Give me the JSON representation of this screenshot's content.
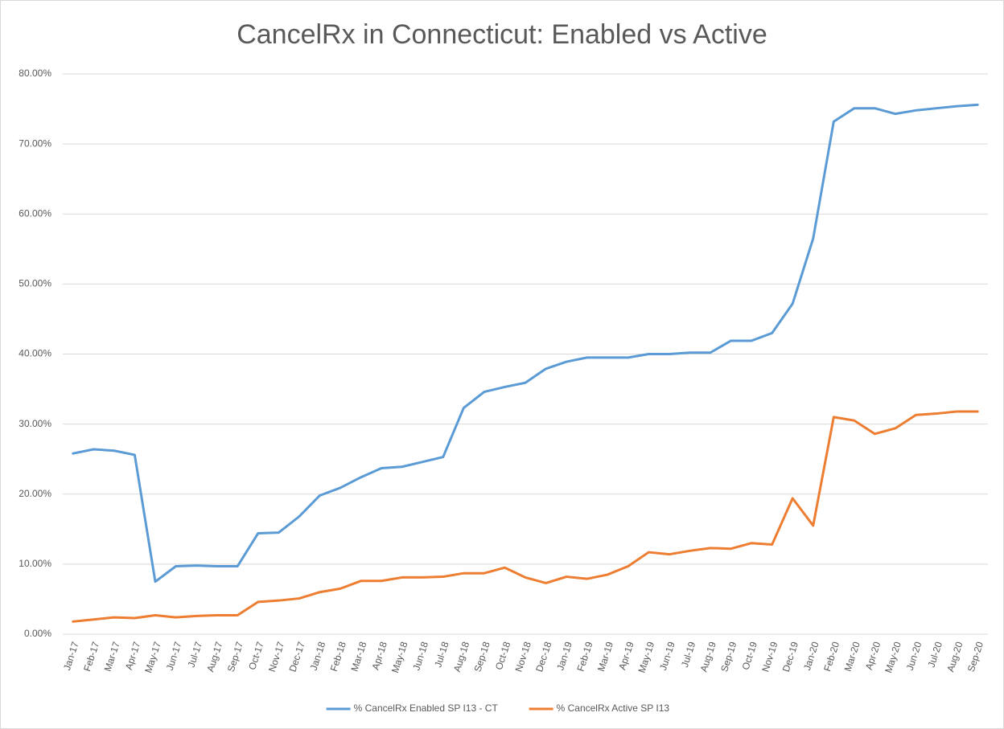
{
  "chart_data": {
    "type": "line",
    "title": "CancelRx in Connecticut: Enabled vs Active",
    "categories": [
      "Jan-17",
      "Feb-17",
      "Mar-17",
      "Apr-17",
      "May-17",
      "Jun-17",
      "Jul-17",
      "Aug-17",
      "Sep-17",
      "Oct-17",
      "Nov-17",
      "Dec-17",
      "Jan-18",
      "Feb-18",
      "Mar-18",
      "Apr-18",
      "May-18",
      "Jun-18",
      "Jul-18",
      "Aug-18",
      "Sep-18",
      "Oct-18",
      "Nov-18",
      "Dec-18",
      "Jan-19",
      "Feb-19",
      "Mar-19",
      "Apr-19",
      "May-19",
      "Jun-19",
      "Jul-19",
      "Aug-19",
      "Sep-19",
      "Oct-19",
      "Nov-19",
      "Dec-19",
      "Jan-20",
      "Feb-20",
      "Mar-20",
      "Apr-20",
      "May-20",
      "Jun-20",
      "Jul-20",
      "Aug-20",
      "Sep-20"
    ],
    "series": [
      {
        "name": "% CancelRx Enabled SP I13 - CT",
        "color": "#5b9bd5",
        "values": [
          25.8,
          26.4,
          26.2,
          25.6,
          7.5,
          9.7,
          9.8,
          9.7,
          9.7,
          14.4,
          14.5,
          16.8,
          19.8,
          20.9,
          22.4,
          23.7,
          23.9,
          24.6,
          25.3,
          32.3,
          34.6,
          35.3,
          35.9,
          37.9,
          38.9,
          39.5,
          39.5,
          39.5,
          40.0,
          40.0,
          40.2,
          40.2,
          41.9,
          41.9,
          43.0,
          47.2,
          56.5,
          73.2,
          75.1,
          75.1,
          74.3,
          74.8,
          75.1,
          75.4,
          75.6
        ]
      },
      {
        "name": "% CancelRx Active SP I13",
        "color": "#ed7d31",
        "values": [
          1.8,
          2.1,
          2.4,
          2.3,
          2.7,
          2.4,
          2.6,
          2.7,
          2.7,
          4.6,
          4.8,
          5.1,
          6.0,
          6.5,
          7.6,
          7.6,
          8.1,
          8.1,
          8.2,
          8.7,
          8.7,
          9.5,
          8.1,
          7.3,
          8.2,
          7.9,
          8.5,
          9.7,
          11.7,
          11.4,
          11.9,
          12.3,
          12.2,
          13.0,
          12.8,
          19.4,
          15.5,
          31.0,
          30.5,
          28.6,
          29.4,
          31.3,
          31.5,
          31.8,
          31.8
        ]
      }
    ],
    "ylim": [
      0,
      80
    ],
    "yticks": [
      {
        "value": 0,
        "label": "0.00%"
      },
      {
        "value": 10,
        "label": "10.00%"
      },
      {
        "value": 20,
        "label": "20.00%"
      },
      {
        "value": 30,
        "label": "30.00%"
      },
      {
        "value": 40,
        "label": "40.00%"
      },
      {
        "value": 50,
        "label": "50.00%"
      },
      {
        "value": 60,
        "label": "60.00%"
      },
      {
        "value": 70,
        "label": "70.00%"
      },
      {
        "value": 80,
        "label": "80.00%"
      }
    ],
    "grid": true,
    "legend": "bottom"
  }
}
